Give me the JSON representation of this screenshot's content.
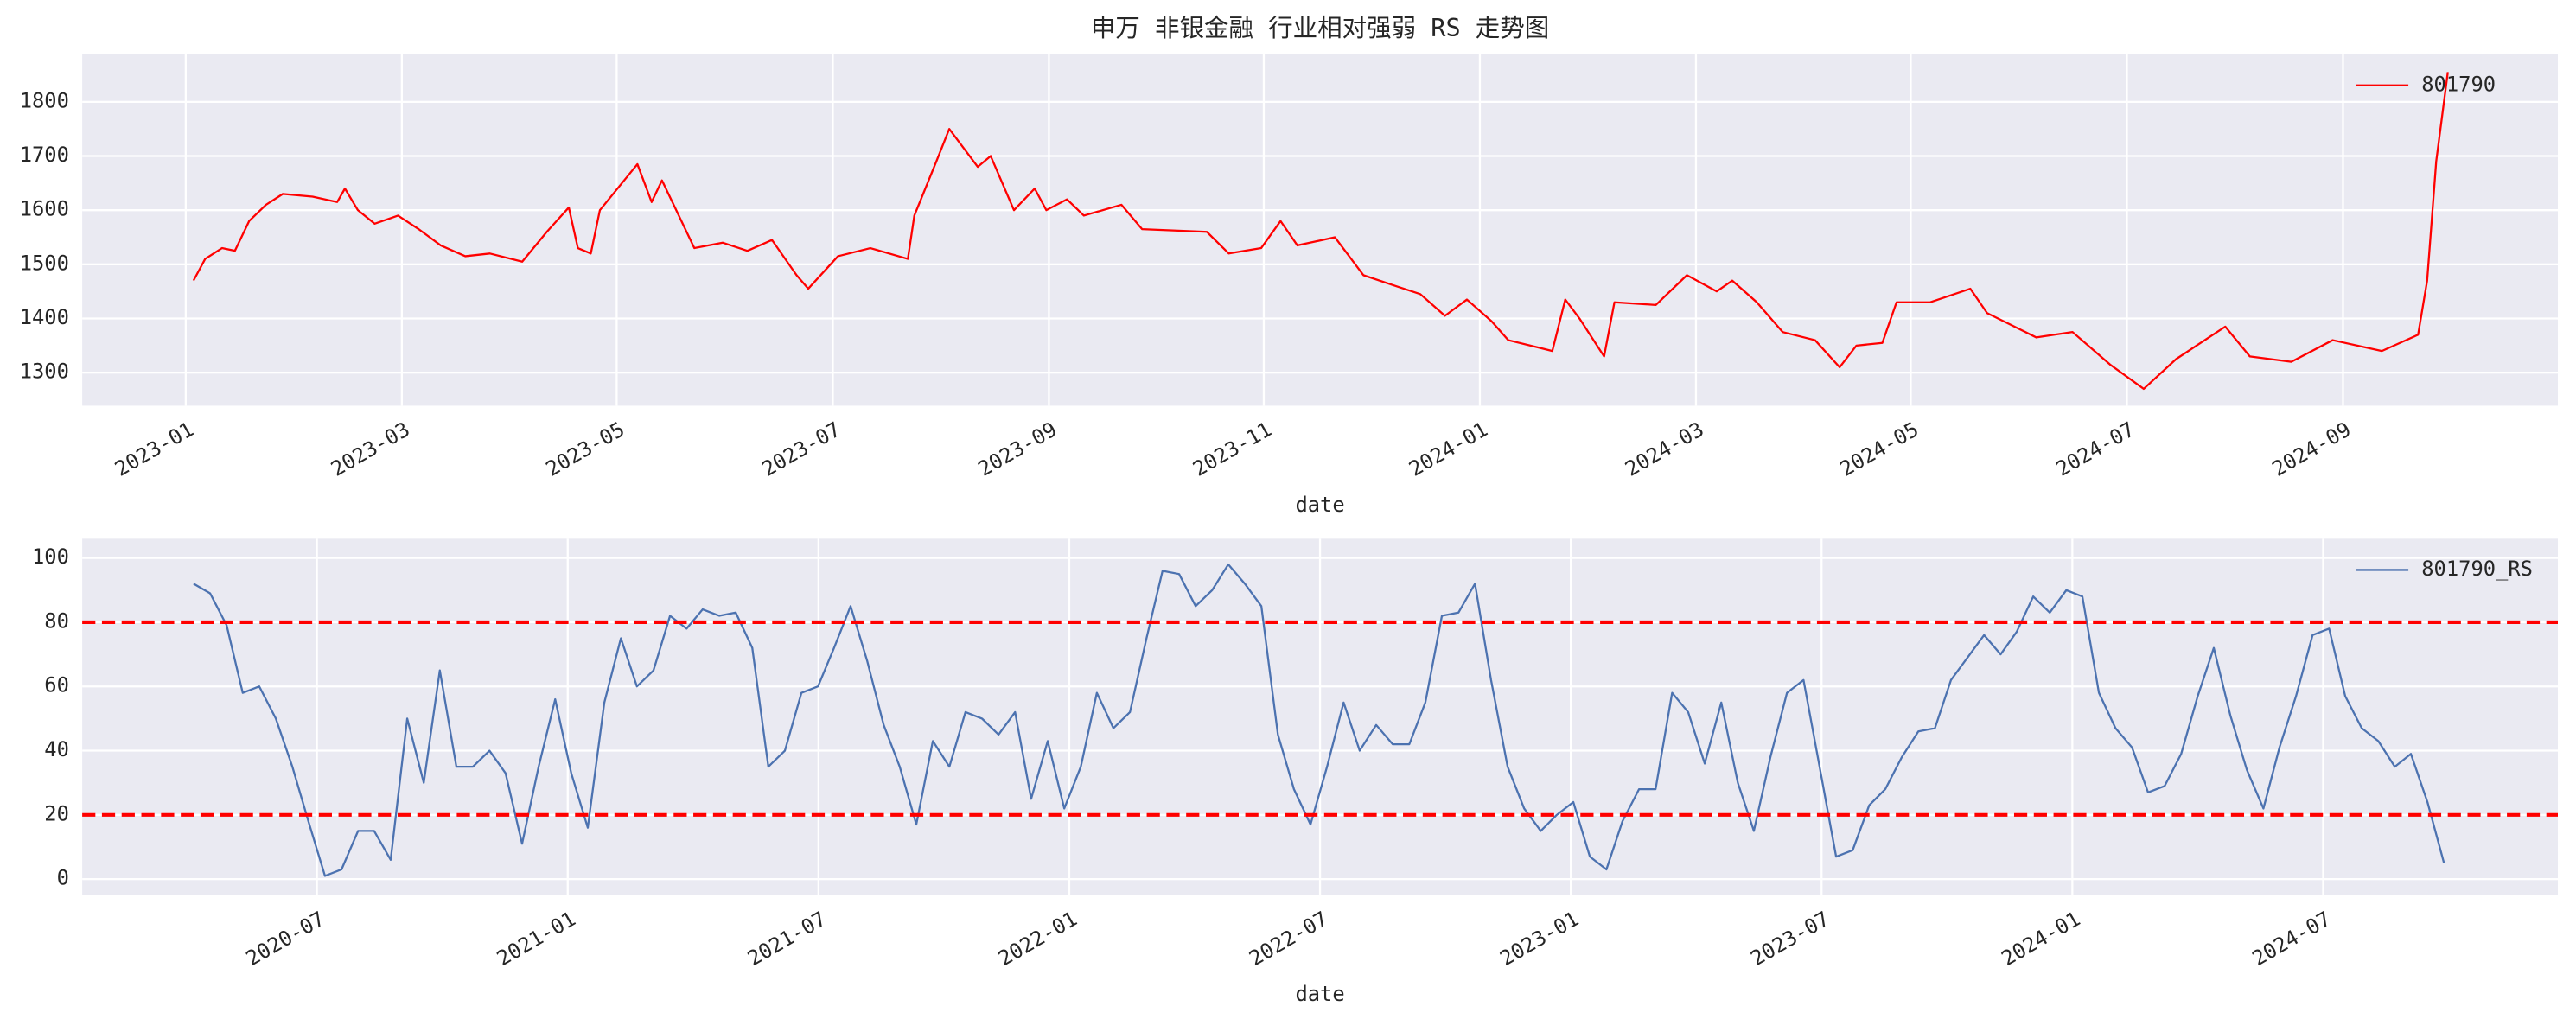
{
  "chart_data": [
    {
      "type": "line",
      "title": "申万 非银金融 行业相对强弱 RS 走势图",
      "xlabel": "date",
      "x": [
        2023.006,
        2023.015,
        2023.028,
        2023.038,
        2023.049,
        2023.062,
        2023.075,
        2023.098,
        2023.117,
        2023.123,
        2023.133,
        2023.146,
        2023.164,
        2023.18,
        2023.197,
        2023.216,
        2023.235,
        2023.26,
        2023.279,
        2023.296,
        2023.303,
        2023.313,
        2023.32,
        2023.349,
        2023.36,
        2023.368,
        2023.379,
        2023.393,
        2023.415,
        2023.434,
        2023.453,
        2023.472,
        2023.481,
        2023.504,
        2023.529,
        2023.558,
        2023.563,
        2023.58,
        2023.59,
        2023.612,
        2023.622,
        2023.64,
        2023.656,
        2023.665,
        2023.681,
        2023.694,
        2023.723,
        2023.739,
        2023.789,
        2023.806,
        2023.831,
        2023.846,
        2023.859,
        2023.888,
        2023.91,
        2023.935,
        2023.954,
        2023.973,
        2023.99,
        2024.009,
        2024.022,
        2024.056,
        2024.066,
        2024.077,
        2024.096,
        2024.104,
        2024.136,
        2024.16,
        2024.183,
        2024.195,
        2024.214,
        2024.234,
        2024.259,
        2024.278,
        2024.291,
        2024.311,
        2024.322,
        2024.348,
        2024.379,
        2024.392,
        2024.43,
        2024.458,
        2024.487,
        2024.513,
        2024.538,
        2024.576,
        2024.595,
        2024.627,
        2024.659,
        2024.697,
        2024.725,
        2024.732,
        2024.739,
        2024.748
      ],
      "series": [
        {
          "name": "801790",
          "color": "#ff0000",
          "values": [
            1470,
            1510,
            1530,
            1525,
            1580,
            1610,
            1630,
            1625,
            1615,
            1640,
            1600,
            1575,
            1590,
            1565,
            1535,
            1515,
            1520,
            1505,
            1560,
            1605,
            1530,
            1520,
            1600,
            1685,
            1615,
            1655,
            1600,
            1530,
            1540,
            1525,
            1545,
            1480,
            1455,
            1515,
            1530,
            1510,
            1590,
            1690,
            1750,
            1680,
            1700,
            1600,
            1640,
            1600,
            1620,
            1590,
            1610,
            1565,
            1560,
            1520,
            1530,
            1580,
            1535,
            1550,
            1480,
            1460,
            1445,
            1405,
            1435,
            1395,
            1360,
            1340,
            1435,
            1400,
            1330,
            1430,
            1425,
            1480,
            1450,
            1470,
            1430,
            1375,
            1360,
            1310,
            1350,
            1355,
            1430,
            1430,
            1455,
            1410,
            1365,
            1375,
            1315,
            1270,
            1325,
            1385,
            1330,
            1320,
            1360,
            1340,
            1370,
            1470,
            1690,
            1855
          ]
        }
      ],
      "xlim": [
        2022.92,
        2024.833
      ],
      "ylim": [
        1239,
        1888
      ],
      "xticks": [
        {
          "value": 2023.0,
          "label": "2023-01"
        },
        {
          "value": 2023.167,
          "label": "2023-03"
        },
        {
          "value": 2023.333,
          "label": "2023-05"
        },
        {
          "value": 2023.5,
          "label": "2023-07"
        },
        {
          "value": 2023.667,
          "label": "2023-09"
        },
        {
          "value": 2023.833,
          "label": "2023-11"
        },
        {
          "value": 2024.0,
          "label": "2024-01"
        },
        {
          "value": 2024.167,
          "label": "2024-03"
        },
        {
          "value": 2024.333,
          "label": "2024-05"
        },
        {
          "value": 2024.5,
          "label": "2024-07"
        },
        {
          "value": 2024.667,
          "label": "2024-09"
        }
      ],
      "yticks": [
        1300,
        1400,
        1500,
        1600,
        1700,
        1800
      ],
      "grid": true,
      "legend": "upper right"
    },
    {
      "type": "line",
      "xlabel": "date",
      "x": [
        2020.254,
        2020.287,
        2020.32,
        2020.352,
        2020.385,
        2020.418,
        2020.451,
        2020.483,
        2020.516,
        2020.549,
        2020.582,
        2020.614,
        2020.647,
        2020.68,
        2020.713,
        2020.745,
        2020.778,
        2020.811,
        2020.844,
        2020.876,
        2020.909,
        2020.942,
        2020.975,
        2021.007,
        2021.04,
        2021.073,
        2021.106,
        2021.138,
        2021.171,
        2021.204,
        2021.237,
        2021.269,
        2021.302,
        2021.335,
        2021.368,
        2021.4,
        2021.433,
        2021.466,
        2021.499,
        2021.531,
        2021.564,
        2021.597,
        2021.63,
        2021.662,
        2021.695,
        2021.728,
        2021.761,
        2021.793,
        2021.826,
        2021.859,
        2021.892,
        2021.924,
        2021.957,
        2021.99,
        2022.023,
        2022.055,
        2022.088,
        2022.121,
        2022.154,
        2022.186,
        2022.219,
        2022.252,
        2022.285,
        2022.317,
        2022.35,
        2022.383,
        2022.416,
        2022.448,
        2022.481,
        2022.514,
        2022.547,
        2022.579,
        2022.612,
        2022.645,
        2022.678,
        2022.71,
        2022.743,
        2022.776,
        2022.809,
        2022.841,
        2022.874,
        2022.907,
        2022.94,
        2022.972,
        2023.005,
        2023.038,
        2023.071,
        2023.103,
        2023.136,
        2023.169,
        2023.202,
        2023.234,
        2023.267,
        2023.3,
        2023.333,
        2023.365,
        2023.398,
        2023.431,
        2023.464,
        2023.496,
        2023.529,
        2023.562,
        2023.595,
        2023.627,
        2023.66,
        2023.693,
        2023.726,
        2023.758,
        2023.791,
        2023.824,
        2023.857,
        2023.889,
        2023.922,
        2023.955,
        2023.988,
        2024.02,
        2024.053,
        2024.086,
        2024.119,
        2024.151,
        2024.184,
        2024.217,
        2024.25,
        2024.282,
        2024.315,
        2024.348,
        2024.381,
        2024.413,
        2024.446,
        2024.479,
        2024.512,
        2024.544,
        2024.577,
        2024.61,
        2024.643,
        2024.675,
        2024.708,
        2024.741
      ],
      "series": [
        {
          "name": "801790_RS",
          "color": "#4c72b0",
          "values": [
            92,
            89,
            79,
            58,
            60,
            50,
            35,
            18,
            1,
            3,
            15,
            15,
            6,
            50,
            30,
            65,
            35,
            35,
            40,
            33,
            11,
            35,
            56,
            33,
            16,
            55,
            75,
            60,
            65,
            82,
            78,
            84,
            82,
            83,
            72,
            35,
            40,
            58,
            60,
            72,
            85,
            68,
            48,
            35,
            17,
            43,
            35,
            52,
            50,
            45,
            52,
            25,
            43,
            22,
            35,
            58,
            47,
            52,
            75,
            96,
            95,
            85,
            90,
            98,
            92,
            85,
            45,
            28,
            17,
            35,
            55,
            40,
            48,
            42,
            42,
            55,
            82,
            83,
            92,
            62,
            35,
            22,
            15,
            20,
            24,
            7,
            3,
            18,
            28,
            28,
            58,
            52,
            36,
            55,
            30,
            15,
            38,
            58,
            62,
            35,
            7,
            9,
            23,
            28,
            38,
            46,
            47,
            62,
            69,
            76,
            70,
            77,
            88,
            83,
            90,
            88,
            58,
            47,
            41,
            27,
            29,
            39,
            57,
            72,
            51,
            34,
            22,
            41,
            57,
            76,
            78,
            57,
            47,
            43,
            35,
            39,
            24,
            5
          ]
        }
      ],
      "hlines": {
        "values": [
          80,
          20
        ],
        "color": "#ff0000",
        "style": "dashed"
      },
      "xlim": [
        2020.032,
        2024.968
      ],
      "ylim": [
        -5,
        106
      ],
      "xticks": [
        {
          "value": 2020.5,
          "label": "2020-07"
        },
        {
          "value": 2021.0,
          "label": "2021-01"
        },
        {
          "value": 2021.5,
          "label": "2021-07"
        },
        {
          "value": 2022.0,
          "label": "2022-01"
        },
        {
          "value": 2022.5,
          "label": "2022-07"
        },
        {
          "value": 2023.0,
          "label": "2023-01"
        },
        {
          "value": 2023.5,
          "label": "2023-07"
        },
        {
          "value": 2024.0,
          "label": "2024-01"
        },
        {
          "value": 2024.5,
          "label": "2024-07"
        }
      ],
      "yticks": [
        0,
        20,
        40,
        60,
        80,
        100
      ],
      "grid": true,
      "legend": "upper right"
    }
  ]
}
